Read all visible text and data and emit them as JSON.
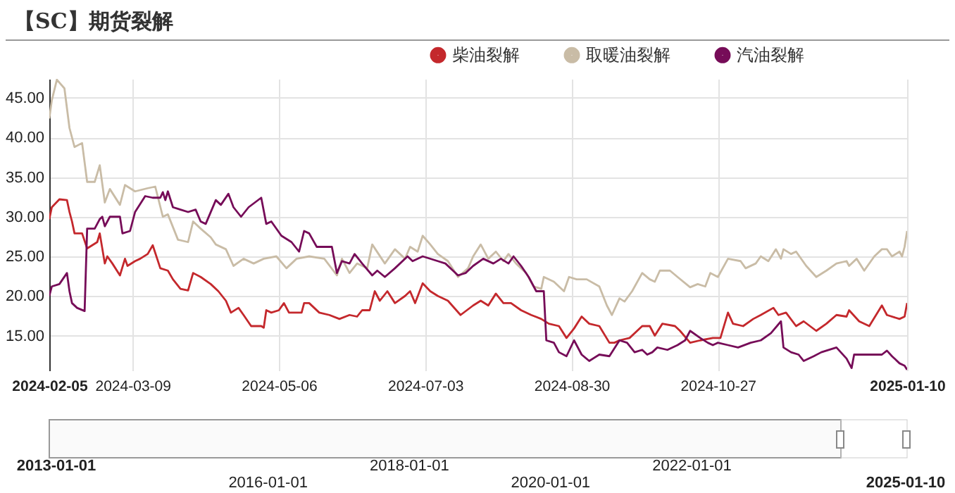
{
  "chart_data": {
    "type": "line",
    "title": "【SC】期货裂解",
    "xlim": [
      "2024-02-05",
      "2025-01-10"
    ],
    "xticks": [
      "2024-02-05",
      "2024-03-09",
      "2024-05-06",
      "2024-07-03",
      "2024-08-30",
      "2024-10-27",
      "2025-01-10"
    ],
    "ylim": [
      10.6,
      47.4
    ],
    "yticks": [
      {
        "value": 15,
        "label": "15.00"
      },
      {
        "value": 20,
        "label": "20.00"
      },
      {
        "value": 25,
        "label": "25.00"
      },
      {
        "value": 30,
        "label": "30.00"
      },
      {
        "value": 35,
        "label": "35.00"
      },
      {
        "value": 40,
        "label": "40.00"
      },
      {
        "value": 45,
        "label": "45.00"
      }
    ],
    "grid": true,
    "legend": "top right",
    "annotations": [
      "2013-01-01",
      "2016-01-01",
      "2018-01-01",
      "2020-01-01",
      "2022-01-01",
      "2025-01-10"
    ],
    "series": [
      {
        "name": "柴油裂解",
        "color": "#c4282c",
        "x": [
          "2024-02-05",
          "2024-02-06",
          "2024-02-09",
          "2024-02-12",
          "2024-02-13",
          "2024-02-14",
          "2024-02-15",
          "2024-02-18",
          "2024-02-20",
          "2024-02-24",
          "2024-02-25",
          "2024-02-27",
          "2024-02-28",
          "2024-03-01",
          "2024-03-04",
          "2024-03-06",
          "2024-03-07",
          "2024-03-10",
          "2024-03-12",
          "2024-03-15",
          "2024-03-17",
          "2024-03-20",
          "2024-03-23",
          "2024-03-25",
          "2024-03-28",
          "2024-03-31",
          "2024-04-02",
          "2024-04-05",
          "2024-04-09",
          "2024-04-12",
          "2024-04-15",
          "2024-04-17",
          "2024-04-20",
          "2024-04-22",
          "2024-04-25",
          "2024-04-29",
          "2024-04-30",
          "2024-05-01",
          "2024-05-03",
          "2024-05-06",
          "2024-05-08",
          "2024-05-10",
          "2024-05-15",
          "2024-05-16",
          "2024-05-18",
          "2024-05-22",
          "2024-05-26",
          "2024-05-30",
          "2024-06-03",
          "2024-06-06",
          "2024-06-08",
          "2024-06-11",
          "2024-06-13",
          "2024-06-15",
          "2024-06-18",
          "2024-06-21",
          "2024-06-25",
          "2024-06-27",
          "2024-06-29",
          "2024-07-02",
          "2024-07-05",
          "2024-07-08",
          "2024-07-12",
          "2024-07-17",
          "2024-07-22",
          "2024-07-25",
          "2024-07-28",
          "2024-07-31",
          "2024-08-03",
          "2024-08-06",
          "2024-08-10",
          "2024-08-14",
          "2024-08-18",
          "2024-08-21",
          "2024-08-25",
          "2024-08-28",
          "2024-08-31",
          "2024-09-03",
          "2024-09-06",
          "2024-09-10",
          "2024-09-14",
          "2024-09-16",
          "2024-09-18",
          "2024-09-22",
          "2024-09-27",
          "2024-09-30",
          "2024-10-02",
          "2024-10-05",
          "2024-10-10",
          "2024-10-12",
          "2024-10-16",
          "2024-10-20",
          "2024-10-25",
          "2024-10-28",
          "2024-10-31",
          "2024-11-02",
          "2024-11-06",
          "2024-11-10",
          "2024-11-13",
          "2024-11-18",
          "2024-11-20",
          "2024-11-23",
          "2024-11-27",
          "2024-11-30",
          "2024-12-05",
          "2024-12-09",
          "2024-12-13",
          "2024-12-17",
          "2024-12-18",
          "2024-12-22",
          "2024-12-26",
          "2024-12-31",
          "2025-01-02",
          "2025-01-07",
          "2025-01-09",
          "2025-01-10"
        ],
        "values": [
          29.7,
          31.2,
          32.2,
          32.1,
          30.6,
          29.4,
          27.9,
          27.9,
          26.0,
          26.8,
          27.9,
          24.1,
          25.0,
          24.1,
          22.6,
          24.7,
          23.8,
          24.4,
          24.7,
          25.3,
          26.4,
          23.5,
          23.2,
          22.1,
          20.9,
          20.7,
          22.9,
          22.4,
          21.5,
          20.6,
          19.4,
          17.9,
          18.5,
          17.6,
          16.2,
          16.2,
          16.0,
          18.2,
          17.9,
          18.2,
          19.1,
          17.9,
          17.9,
          19.1,
          19.1,
          17.9,
          17.6,
          17.1,
          17.6,
          17.4,
          18.2,
          18.2,
          20.6,
          19.4,
          20.6,
          19.1,
          20.0,
          20.6,
          19.1,
          21.6,
          20.6,
          20.0,
          19.4,
          17.6,
          18.8,
          19.4,
          18.8,
          20.3,
          19.1,
          19.1,
          18.2,
          17.6,
          17.1,
          16.5,
          16.2,
          14.7,
          15.9,
          17.4,
          16.5,
          16.2,
          14.1,
          14.1,
          14.4,
          14.7,
          16.2,
          16.2,
          15.0,
          16.5,
          16.2,
          15.6,
          14.1,
          14.4,
          14.7,
          14.7,
          17.9,
          16.5,
          16.2,
          17.1,
          17.6,
          18.5,
          17.6,
          17.9,
          16.2,
          16.8,
          15.6,
          16.5,
          17.6,
          17.4,
          18.2,
          16.8,
          16.2,
          18.8,
          17.6,
          17.1,
          17.4,
          19.1
        ]
      },
      {
        "name": "取暖油裂解",
        "color": "#c9bca6",
        "x": [
          "2024-02-05",
          "2024-02-06",
          "2024-02-08",
          "2024-02-11",
          "2024-02-13",
          "2024-02-15",
          "2024-02-18",
          "2024-02-20",
          "2024-02-23",
          "2024-02-25",
          "2024-02-27",
          "2024-02-29",
          "2024-03-04",
          "2024-03-06",
          "2024-03-10",
          "2024-03-15",
          "2024-03-18",
          "2024-03-21",
          "2024-03-23",
          "2024-03-27",
          "2024-03-31",
          "2024-04-02",
          "2024-04-05",
          "2024-04-09",
          "2024-04-11",
          "2024-04-15",
          "2024-04-18",
          "2024-04-22",
          "2024-04-26",
          "2024-04-30",
          "2024-05-05",
          "2024-05-09",
          "2024-05-13",
          "2024-05-18",
          "2024-05-24",
          "2024-05-29",
          "2024-05-31",
          "2024-06-03",
          "2024-06-06",
          "2024-06-10",
          "2024-06-12",
          "2024-06-17",
          "2024-06-21",
          "2024-06-25",
          "2024-06-27",
          "2024-06-30",
          "2024-07-02",
          "2024-07-05",
          "2024-07-08",
          "2024-07-12",
          "2024-07-16",
          "2024-07-20",
          "2024-07-22",
          "2024-07-25",
          "2024-07-28",
          "2024-07-31",
          "2024-08-03",
          "2024-08-05",
          "2024-08-08",
          "2024-08-12",
          "2024-08-15",
          "2024-08-18",
          "2024-08-19",
          "2024-08-23",
          "2024-08-27",
          "2024-08-29",
          "2024-09-01",
          "2024-09-05",
          "2024-09-10",
          "2024-09-13",
          "2024-09-15",
          "2024-09-18",
          "2024-09-20",
          "2024-09-23",
          "2024-09-27",
          "2024-09-30",
          "2024-10-02",
          "2024-10-04",
          "2024-10-08",
          "2024-10-11",
          "2024-10-16",
          "2024-10-19",
          "2024-10-22",
          "2024-10-24",
          "2024-10-27",
          "2024-10-31",
          "2024-11-05",
          "2024-11-07",
          "2024-11-11",
          "2024-11-13",
          "2024-11-16",
          "2024-11-19",
          "2024-11-21",
          "2024-11-22",
          "2024-11-25",
          "2024-11-27",
          "2024-12-01",
          "2024-12-05",
          "2024-12-09",
          "2024-12-13",
          "2024-12-17",
          "2024-12-18",
          "2024-12-21",
          "2024-12-24",
          "2024-12-28",
          "2024-12-31",
          "2025-01-02",
          "2025-01-04",
          "2025-01-07",
          "2025-01-08",
          "2025-01-09",
          "2025-01-10"
        ],
        "values": [
          42.4,
          44.7,
          47.3,
          46.2,
          41.2,
          38.8,
          39.3,
          34.4,
          34.4,
          36.5,
          31.8,
          33.5,
          31.5,
          34.0,
          33.2,
          33.6,
          33.8,
          30.0,
          30.3,
          27.1,
          26.8,
          29.4,
          28.5,
          27.4,
          26.5,
          25.9,
          23.8,
          24.7,
          24.1,
          24.7,
          25.0,
          23.5,
          24.7,
          25.0,
          24.7,
          22.6,
          24.7,
          22.9,
          24.1,
          23.5,
          26.5,
          24.1,
          25.9,
          24.7,
          26.2,
          25.6,
          27.6,
          26.5,
          25.3,
          24.4,
          22.4,
          23.5,
          25.0,
          26.5,
          24.7,
          25.6,
          24.4,
          25.3,
          24.1,
          22.9,
          21.2,
          20.9,
          22.4,
          21.8,
          20.6,
          22.4,
          22.1,
          22.1,
          21.2,
          18.8,
          17.6,
          19.7,
          19.3,
          20.6,
          22.9,
          22.1,
          21.8,
          23.2,
          23.2,
          22.4,
          21.1,
          21.5,
          21.2,
          22.9,
          22.4,
          24.7,
          24.4,
          23.5,
          24.1,
          25.0,
          24.4,
          25.9,
          24.7,
          25.9,
          25.3,
          25.6,
          23.8,
          22.4,
          23.2,
          24.1,
          24.4,
          23.8,
          24.7,
          23.2,
          25.0,
          25.9,
          25.9,
          25.0,
          25.6,
          25.0,
          26.2,
          28.2
        ]
      },
      {
        "name": "汽油裂解",
        "color": "#760c58",
        "x": [
          "2024-02-05",
          "2024-02-06",
          "2024-02-09",
          "2024-02-12",
          "2024-02-13",
          "2024-02-14",
          "2024-02-16",
          "2024-02-19",
          "2024-02-20",
          "2024-02-23",
          "2024-02-25",
          "2024-02-26",
          "2024-02-27",
          "2024-02-29",
          "2024-03-04",
          "2024-03-05",
          "2024-03-08",
          "2024-03-10",
          "2024-03-14",
          "2024-03-17",
          "2024-03-20",
          "2024-03-21",
          "2024-03-22",
          "2024-03-23",
          "2024-03-25",
          "2024-03-28",
          "2024-03-31",
          "2024-04-03",
          "2024-04-05",
          "2024-04-07",
          "2024-04-11",
          "2024-04-13",
          "2024-04-16",
          "2024-04-18",
          "2024-04-21",
          "2024-04-24",
          "2024-04-29",
          "2024-05-01",
          "2024-05-03",
          "2024-05-07",
          "2024-05-11",
          "2024-05-14",
          "2024-05-16",
          "2024-05-18",
          "2024-05-21",
          "2024-05-27",
          "2024-05-29",
          "2024-05-31",
          "2024-06-03",
          "2024-06-05",
          "2024-06-08",
          "2024-06-12",
          "2024-06-14",
          "2024-06-17",
          "2024-06-21",
          "2024-06-26",
          "2024-06-28",
          "2024-07-02",
          "2024-07-08",
          "2024-07-11",
          "2024-07-14",
          "2024-07-16",
          "2024-07-19",
          "2024-07-22",
          "2024-07-26",
          "2024-07-30",
          "2024-08-02",
          "2024-08-05",
          "2024-08-07",
          "2024-08-10",
          "2024-08-13",
          "2024-08-16",
          "2024-08-19",
          "2024-08-20",
          "2024-08-23",
          "2024-08-25",
          "2024-08-28",
          "2024-08-31",
          "2024-09-03",
          "2024-09-06",
          "2024-09-10",
          "2024-09-14",
          "2024-09-18",
          "2024-09-21",
          "2024-09-24",
          "2024-09-27",
          "2024-09-29",
          "2024-10-01",
          "2024-10-03",
          "2024-10-07",
          "2024-10-11",
          "2024-10-14",
          "2024-10-16",
          "2024-10-20",
          "2024-10-23",
          "2024-10-25",
          "2024-10-27",
          "2024-10-31",
          "2024-11-04",
          "2024-11-09",
          "2024-11-13",
          "2024-11-17",
          "2024-11-21",
          "2024-11-22",
          "2024-11-25",
          "2024-11-28",
          "2024-11-30",
          "2024-12-04",
          "2024-12-07",
          "2024-12-13",
          "2024-12-17",
          "2024-12-19",
          "2024-12-20",
          "2024-12-26",
          "2024-12-31",
          "2025-01-02",
          "2025-01-04",
          "2025-01-07",
          "2025-01-09",
          "2025-01-10"
        ],
        "values": [
          20.0,
          21.2,
          21.5,
          22.9,
          20.6,
          19.1,
          18.5,
          18.1,
          28.5,
          28.5,
          29.7,
          30.0,
          28.8,
          30.0,
          30.0,
          27.9,
          28.2,
          30.6,
          32.6,
          32.4,
          32.4,
          33.1,
          32.1,
          33.2,
          31.2,
          30.9,
          30.6,
          30.9,
          29.4,
          29.1,
          32.1,
          31.5,
          32.9,
          31.2,
          30.0,
          31.2,
          32.4,
          29.1,
          29.4,
          27.6,
          26.8,
          25.6,
          28.2,
          27.9,
          26.2,
          26.2,
          22.9,
          24.4,
          24.1,
          25.3,
          24.1,
          22.6,
          23.2,
          22.4,
          23.5,
          25.0,
          24.4,
          25.0,
          24.4,
          24.1,
          23.2,
          22.6,
          22.9,
          23.8,
          24.7,
          24.1,
          24.7,
          24.1,
          25.0,
          23.8,
          22.4,
          20.6,
          20.6,
          14.4,
          14.1,
          12.9,
          12.4,
          14.4,
          12.6,
          11.8,
          12.6,
          12.4,
          14.4,
          14.1,
          12.9,
          13.2,
          12.6,
          12.9,
          13.5,
          13.2,
          13.8,
          14.4,
          15.6,
          14.7,
          14.1,
          13.8,
          14.1,
          13.8,
          13.5,
          14.1,
          14.4,
          15.3,
          16.8,
          13.5,
          12.9,
          12.6,
          11.8,
          12.4,
          12.9,
          13.5,
          12.1,
          10.9,
          12.6,
          12.6,
          12.6,
          13.1,
          12.4,
          11.5,
          11.2,
          10.7
        ]
      }
    ]
  }
}
